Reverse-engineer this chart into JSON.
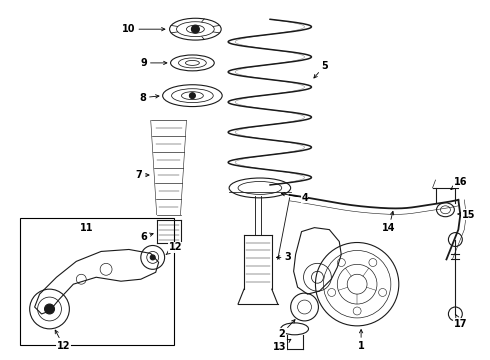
{
  "bg_color": "#ffffff",
  "line_color": "#1a1a1a",
  "fig_width": 4.9,
  "fig_height": 3.6,
  "dpi": 100,
  "lw": 0.8,
  "label_fs": 6.5
}
